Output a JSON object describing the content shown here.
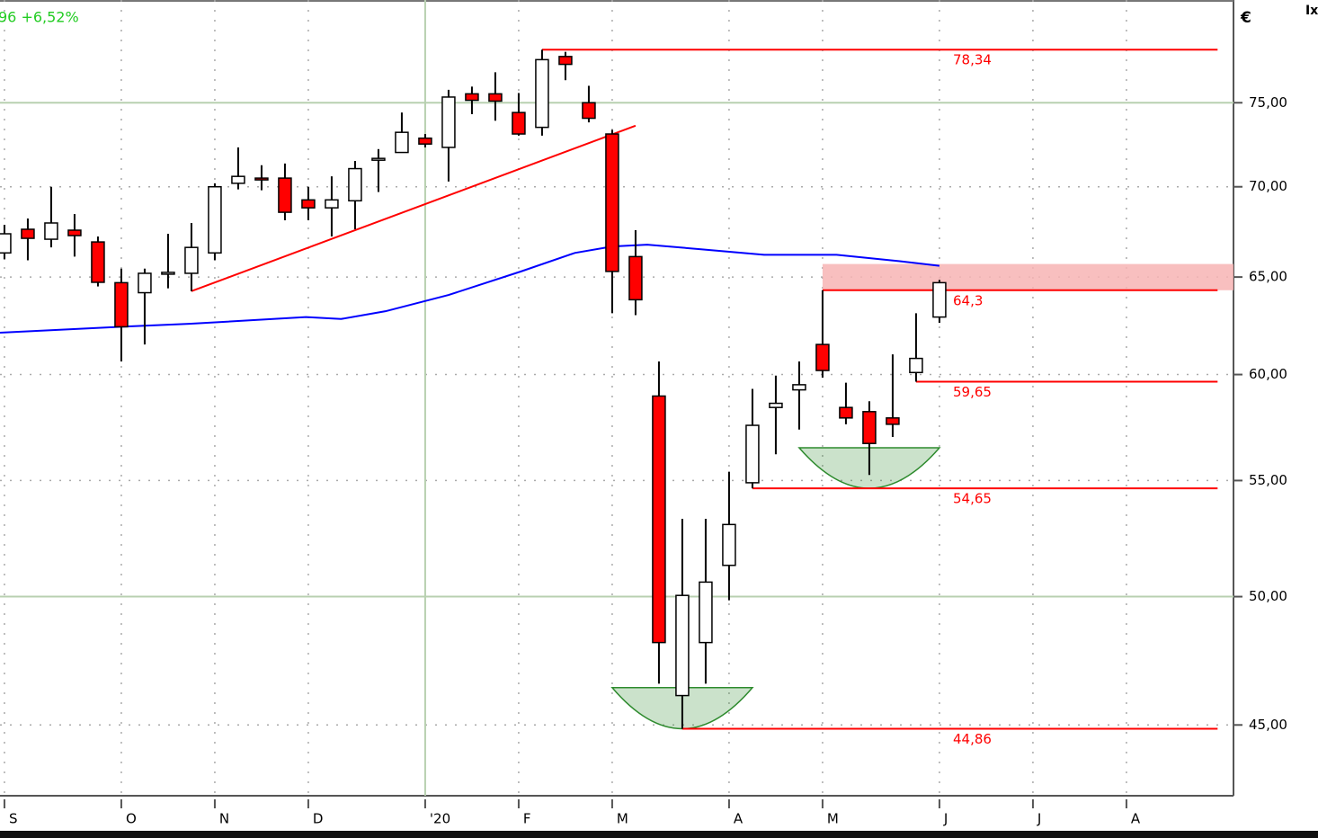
{
  "chart_data": {
    "type": "candlestick",
    "header": "96 +6,52%",
    "currency": "€",
    "corner_label": "Ix",
    "log_scale": true,
    "grid": true,
    "xlim": [
      -0.19,
      52.58
    ],
    "ylim": [
      42.46,
      81.6
    ],
    "yticks": [
      {
        "value": 45,
        "label": "45,00"
      },
      {
        "value": 50,
        "label": "50,00"
      },
      {
        "value": 55,
        "label": "55,00"
      },
      {
        "value": 60,
        "label": "60,00"
      },
      {
        "value": 65,
        "label": "65,00"
      },
      {
        "value": 70,
        "label": "70,00"
      },
      {
        "value": 75,
        "label": "75,00"
      }
    ],
    "xticks": [
      {
        "value": 0,
        "label": "S"
      },
      {
        "value": 5,
        "label": "O"
      },
      {
        "value": 9,
        "label": "N"
      },
      {
        "value": 13,
        "label": "D"
      },
      {
        "value": 18,
        "label": "'20"
      },
      {
        "value": 22,
        "label": "F"
      },
      {
        "value": 26,
        "label": "M"
      },
      {
        "value": 31,
        "label": "A"
      },
      {
        "value": 35,
        "label": "M"
      },
      {
        "value": 40,
        "label": "J"
      },
      {
        "value": 44,
        "label": "J"
      },
      {
        "value": 48,
        "label": "A"
      }
    ],
    "solid_grid": {
      "x": [
        18
      ],
      "y": [
        75,
        50
      ]
    },
    "up_color": "#ffffff",
    "down_color": "#ff0000",
    "x": [
      0,
      1,
      2,
      3,
      4,
      5,
      6,
      7,
      8,
      9,
      10,
      11,
      12,
      13,
      14,
      15,
      16,
      17,
      18,
      19,
      20,
      21,
      22,
      23,
      24,
      25,
      26,
      27,
      28,
      29,
      30,
      31,
      32,
      33,
      34,
      35,
      36,
      37,
      38,
      39,
      40
    ],
    "open": [
      66.3,
      67.6,
      67.05,
      67.55,
      66.9,
      64.7,
      64.17,
      65.2,
      65.2,
      66.3,
      70.2,
      70.5,
      70.5,
      69.25,
      68.8,
      69.2,
      71.6,
      72.0,
      72.85,
      72.3,
      75.55,
      75.55,
      74.4,
      73.5,
      77.9,
      75.0,
      73.1,
      66.1,
      58.95,
      46.1,
      48.15,
      51.3,
      54.9,
      58.4,
      59.25,
      61.5,
      58.4,
      58.2,
      57.9,
      60.1,
      62.9
    ],
    "high": [
      67.85,
      68.2,
      70.0,
      68.45,
      67.2,
      65.45,
      65.45,
      67.35,
      67.95,
      70.2,
      72.3,
      71.25,
      71.35,
      70.0,
      70.6,
      71.5,
      72.2,
      74.4,
      73.1,
      75.8,
      76.0,
      76.9,
      75.6,
      78.34,
      78.2,
      76.05,
      73.35,
      67.55,
      60.65,
      53.3,
      53.3,
      55.4,
      59.3,
      59.95,
      60.65,
      64.3,
      59.6,
      58.7,
      61.0,
      63.1,
      64.85
    ],
    "low": [
      65.95,
      65.9,
      66.6,
      66.1,
      64.5,
      60.65,
      61.5,
      64.4,
      64.25,
      65.9,
      69.85,
      69.8,
      68.1,
      68.1,
      67.2,
      67.6,
      69.7,
      72.0,
      72.3,
      70.3,
      74.3,
      73.9,
      73.0,
      73.0,
      76.4,
      73.8,
      63.1,
      63.0,
      46.55,
      44.86,
      46.55,
      49.85,
      54.65,
      56.2,
      57.35,
      59.85,
      57.6,
      55.25,
      57.0,
      59.65,
      62.6
    ],
    "close": [
      67.35,
      67.1,
      67.95,
      67.25,
      64.72,
      62.4,
      65.2,
      65.25,
      66.6,
      70.0,
      70.6,
      70.4,
      68.55,
      68.8,
      69.25,
      71.05,
      71.65,
      73.2,
      72.5,
      75.35,
      75.15,
      75.1,
      73.1,
      77.7,
      77.4,
      74.05,
      65.3,
      63.8,
      48.15,
      50.05,
      50.6,
      53.05,
      57.55,
      58.6,
      59.5,
      60.2,
      57.9,
      56.7,
      57.6,
      60.8,
      64.7
    ],
    "moving_average": {
      "color": "#0000ff",
      "x": [
        -0.19,
        5,
        7.9,
        12.9,
        14.4,
        16.3,
        19,
        22.1,
        24.4,
        26,
        27.5,
        29.8,
        32.5,
        35.6,
        38.3,
        40
      ],
      "values": [
        62.1,
        62.4,
        62.55,
        62.9,
        62.8,
        63.2,
        64.05,
        65.3,
        66.3,
        66.65,
        66.75,
        66.5,
        66.2,
        66.2,
        65.85,
        65.6
      ]
    },
    "trendline": {
      "color": "#ff0000",
      "x": [
        8,
        27
      ],
      "values": [
        64.25,
        73.6
      ]
    },
    "levels": [
      {
        "label": "78,34",
        "value": 78.34,
        "x": [
          23,
          51.9
        ]
      },
      {
        "label": "64,3",
        "value": 64.3,
        "x": [
          35,
          51.9
        ]
      },
      {
        "label": "59,65",
        "value": 59.65,
        "x": [
          39,
          51.9
        ]
      },
      {
        "label": "54,65",
        "value": 54.65,
        "x": [
          32,
          51.9
        ]
      },
      {
        "label": "44,86",
        "value": 44.86,
        "x": [
          29,
          51.9
        ]
      }
    ],
    "level_color": "#ff0000",
    "zone": {
      "x": [
        35,
        52.58
      ],
      "values": [
        64.3,
        65.7
      ],
      "color": "#f7b4b4"
    },
    "bowls": [
      {
        "x": [
          26,
          32
        ],
        "values": [
          44.86,
          46.4
        ]
      },
      {
        "x": [
          34,
          40
        ],
        "values": [
          54.65,
          56.5
        ]
      }
    ],
    "bowl_color": "#2e8b2e"
  }
}
